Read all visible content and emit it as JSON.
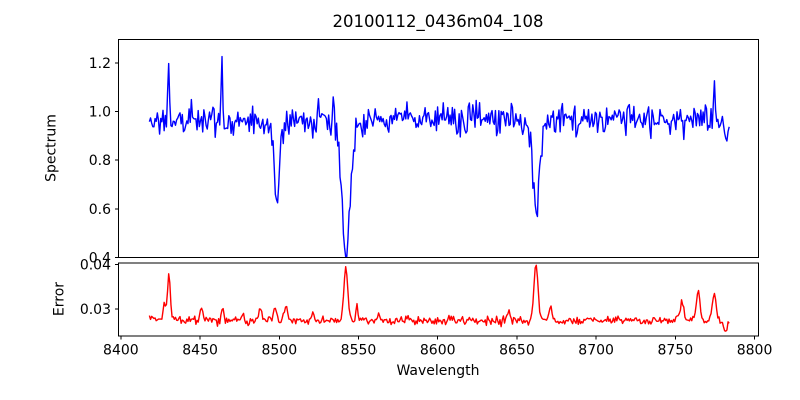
{
  "figure": {
    "title": "20100112_0436m04_108",
    "background": "#ffffff",
    "frame_color": "#000000",
    "text_color": "#000000"
  },
  "chart_data": [
    {
      "type": "line",
      "panel": "spectrum",
      "title": "20100112_0436m04_108",
      "ylabel": "Spectrum",
      "xlabel": "",
      "line_color": "#0000ff",
      "grid": false,
      "legend": "none",
      "xlim": [
        8398.5,
        8802.5
      ],
      "ylim": [
        0.4,
        1.2965
      ],
      "yticks": [
        {
          "v": 0.4,
          "label": "0.4"
        },
        {
          "v": 0.6,
          "label": "0.6"
        },
        {
          "v": 0.8,
          "label": "0.8"
        },
        {
          "v": 1.0,
          "label": "1.0"
        },
        {
          "v": 1.2,
          "label": "1.2"
        }
      ],
      "xticks": [
        {
          "v": 8400,
          "label": "8400"
        },
        {
          "v": 8450,
          "label": "8450"
        },
        {
          "v": 8500,
          "label": "8500"
        },
        {
          "v": 8550,
          "label": "8550"
        },
        {
          "v": 8600,
          "label": "8600"
        },
        {
          "v": 8650,
          "label": "8650"
        },
        {
          "v": 8700,
          "label": "8700"
        },
        {
          "v": 8750,
          "label": "8750"
        },
        {
          "v": 8800,
          "label": "8800"
        }
      ],
      "show_xtick_labels": false,
      "series": {
        "name": "spectrum",
        "x_start": 8418,
        "x_end": 8784,
        "n_points": 512,
        "baseline": 0.968,
        "noise_sigma": 0.031,
        "noise_seed": 20100112,
        "features": [
          {
            "center": 8430.3,
            "amplitude": 0.26,
            "sigma": 0.45,
            "kind": "emission-spike"
          },
          {
            "center": 8463.8,
            "amplitude": 0.3,
            "sigma": 0.45,
            "kind": "emission-spike"
          },
          {
            "center": 8534.0,
            "amplitude": 0.13,
            "sigma": 0.5,
            "kind": "emission-spike"
          },
          {
            "center": 8774.5,
            "amplitude": 0.17,
            "sigma": 0.5,
            "kind": "emission-spike"
          },
          {
            "center": 8782.5,
            "amplitude": -0.13,
            "sigma": 0.8,
            "kind": "edge-dip"
          },
          {
            "center": 8498.5,
            "amplitude": -0.3,
            "sigma": 1.5,
            "kind": "absorption-core"
          },
          {
            "center": 8498.5,
            "amplitude": -0.04,
            "sigma": 5.0,
            "kind": "absorption-wing"
          },
          {
            "center": 8542.0,
            "amplitude": -0.48,
            "sigma": 2.4,
            "kind": "absorption-core"
          },
          {
            "center": 8542.0,
            "amplitude": -0.055,
            "sigma": 7.0,
            "kind": "absorption-wing"
          },
          {
            "center": 8662.0,
            "amplitude": -0.33,
            "sigma": 1.9,
            "kind": "absorption-core"
          },
          {
            "center": 8662.0,
            "amplitude": -0.045,
            "sigma": 6.0,
            "kind": "absorption-wing"
          }
        ]
      }
    },
    {
      "type": "line",
      "panel": "error",
      "ylabel": "Error",
      "xlabel": "Wavelength",
      "line_color": "#ff0000",
      "grid": false,
      "legend": "none",
      "xlim": [
        8398.5,
        8802.5
      ],
      "ylim": [
        0.0239,
        0.0403
      ],
      "yticks": [
        {
          "v": 0.03,
          "label": "0.03"
        },
        {
          "v": 0.04,
          "label": "0.04"
        }
      ],
      "xticks": [
        {
          "v": 8400,
          "label": "8400"
        },
        {
          "v": 8450,
          "label": "8450"
        },
        {
          "v": 8500,
          "label": "8500"
        },
        {
          "v": 8550,
          "label": "8550"
        },
        {
          "v": 8600,
          "label": "8600"
        },
        {
          "v": 8650,
          "label": "8650"
        },
        {
          "v": 8700,
          "label": "8700"
        },
        {
          "v": 8750,
          "label": "8750"
        },
        {
          "v": 8800,
          "label": "8800"
        }
      ],
      "show_xtick_labels": true,
      "series": {
        "name": "error",
        "x_start": 8418,
        "x_end": 8784,
        "n_points": 512,
        "baseline": 0.0274,
        "noise_sigma": 0.00045,
        "noise_seed": 436104,
        "features": [
          {
            "center": 8416.0,
            "amplitude": 0.0018,
            "sigma": 2.0
          },
          {
            "center": 8427.5,
            "amplitude": 0.004,
            "sigma": 0.7
          },
          {
            "center": 8430.3,
            "amplitude": 0.0115,
            "sigma": 0.8
          },
          {
            "center": 8451.0,
            "amplitude": 0.0028,
            "sigma": 0.7
          },
          {
            "center": 8464.0,
            "amplitude": 0.003,
            "sigma": 0.8
          },
          {
            "center": 8477.0,
            "amplitude": 0.0015,
            "sigma": 0.7
          },
          {
            "center": 8488.0,
            "amplitude": 0.0028,
            "sigma": 0.9
          },
          {
            "center": 8497.5,
            "amplitude": 0.0032,
            "sigma": 0.9
          },
          {
            "center": 8504.0,
            "amplitude": 0.0032,
            "sigma": 0.9
          },
          {
            "center": 8521.0,
            "amplitude": 0.0018,
            "sigma": 0.7
          },
          {
            "center": 8542.0,
            "amplitude": 0.0115,
            "sigma": 1.2
          },
          {
            "center": 8549.0,
            "amplitude": 0.0028,
            "sigma": 0.7
          },
          {
            "center": 8563.0,
            "amplitude": 0.0012,
            "sigma": 0.7
          },
          {
            "center": 8645.0,
            "amplitude": 0.002,
            "sigma": 0.8
          },
          {
            "center": 8662.0,
            "amplitude": 0.0122,
            "sigma": 1.3
          },
          {
            "center": 8671.0,
            "amplitude": 0.0032,
            "sigma": 0.8
          },
          {
            "center": 8754.0,
            "amplitude": 0.0048,
            "sigma": 1.1
          },
          {
            "center": 8764.5,
            "amplitude": 0.006,
            "sigma": 1.1
          },
          {
            "center": 8774.5,
            "amplitude": 0.0058,
            "sigma": 1.2
          },
          {
            "center": 8782.0,
            "amplitude": -0.0022,
            "sigma": 1.4
          }
        ]
      }
    }
  ]
}
